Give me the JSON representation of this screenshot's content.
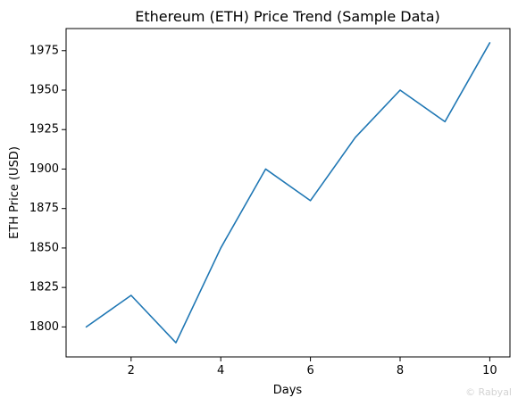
{
  "chart_data": {
    "type": "line",
    "title": "Ethereum (ETH) Price Trend (Sample Data)",
    "xlabel": "Days",
    "ylabel": "ETH Price (USD)",
    "x": [
      1,
      2,
      3,
      4,
      5,
      6,
      7,
      8,
      9,
      10
    ],
    "series": [
      {
        "values": [
          1800,
          1820,
          1790,
          1850,
          1900,
          1880,
          1920,
          1950,
          1930,
          1980
        ]
      }
    ],
    "xlim": [
      0.55,
      10.45
    ],
    "ylim": [
      1781,
      1989
    ],
    "xticks": [
      2,
      4,
      6,
      8,
      10
    ],
    "yticks": [
      1800,
      1825,
      1850,
      1875,
      1900,
      1925,
      1950,
      1975
    ],
    "grid": false,
    "colors": {
      "line": "#1f77b4",
      "axis": "#000000"
    }
  },
  "watermark": "© Rabyal"
}
